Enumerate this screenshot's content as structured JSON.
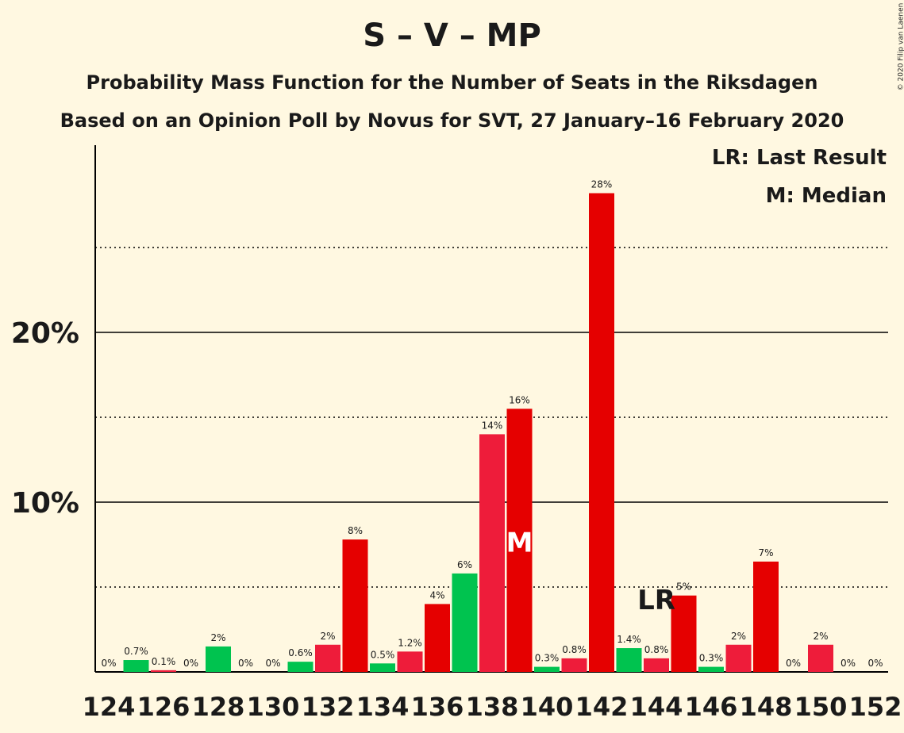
{
  "header": {
    "title": "S – V – MP",
    "subtitle1": "Probability Mass Function for the Number of Seats in the Riksdagen",
    "subtitle2": "Based on an Opinion Poll by Novus for SVT, 27 January–16 February 2020",
    "copyright": "© 2020 Filip van Laenen"
  },
  "legend": {
    "last_result": "LR: Last Result",
    "median": "M: Median"
  },
  "colors": {
    "background": "#fff8e1",
    "red_dark": "#e50000",
    "red_light": "#ee1c3a",
    "green": "#00c34f"
  },
  "chart_data": {
    "type": "bar",
    "x": [
      124,
      125,
      126,
      127,
      128,
      129,
      130,
      131,
      132,
      133,
      134,
      135,
      136,
      137,
      138,
      139,
      140,
      141,
      142,
      143,
      144,
      145,
      146,
      147,
      148,
      149,
      150,
      151,
      152
    ],
    "values": [
      0,
      0.7,
      0.1,
      0,
      1.5,
      0,
      0,
      0.6,
      1.6,
      7.8,
      0.5,
      1.2,
      4.0,
      5.8,
      14.0,
      15.5,
      0.3,
      0.8,
      28.2,
      1.4,
      0.8,
      4.5,
      0.3,
      1.6,
      6.5,
      0,
      1.6,
      0,
      0
    ],
    "labels": [
      "0%",
      "0.7%",
      "0.1%",
      "0%",
      "2%",
      "0%",
      "0%",
      "0.6%",
      "2%",
      "8%",
      "0.5%",
      "1.2%",
      "4%",
      "6%",
      "14%",
      "16%",
      "0.3%",
      "0.8%",
      "28%",
      "1.4%",
      "0.8%",
      "5%",
      "0.3%",
      "2%",
      "7%",
      "0%",
      "2%",
      "0%",
      "0%"
    ],
    "colors": [
      "red_dark",
      "green",
      "red_light",
      "red_dark",
      "green",
      "red_light",
      "red_dark",
      "green",
      "red_light",
      "red_dark",
      "green",
      "red_light",
      "red_dark",
      "green",
      "red_light",
      "red_dark",
      "green",
      "red_light",
      "red_dark",
      "green",
      "red_light",
      "red_dark",
      "green",
      "red_light",
      "red_dark",
      "green",
      "red_light",
      "red_dark",
      "green"
    ],
    "x_tick_labels": [
      "124",
      "126",
      "128",
      "130",
      "132",
      "134",
      "136",
      "138",
      "140",
      "142",
      "144",
      "146",
      "148",
      "150",
      "152"
    ],
    "y_tick_labels": [
      "10%",
      "20%"
    ],
    "ylim": [
      0,
      31
    ],
    "median": {
      "seat": 139,
      "label": "M"
    },
    "last_result": {
      "seat": 144,
      "label": "LR"
    },
    "gridlines": {
      "solid": [
        10,
        20
      ],
      "dotted": [
        5,
        15,
        25
      ]
    }
  }
}
